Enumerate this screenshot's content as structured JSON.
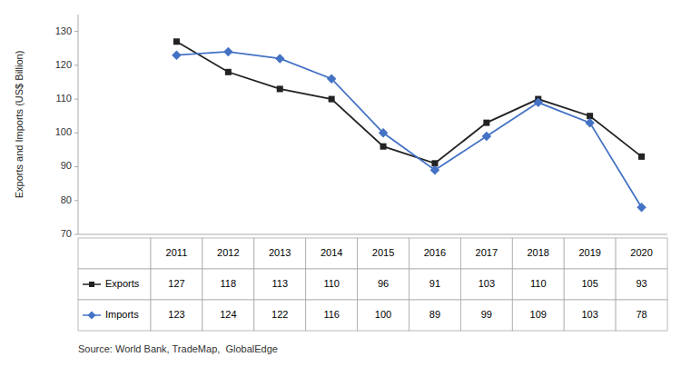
{
  "chart_data": {
    "type": "line",
    "categories": [
      "2011",
      "2012",
      "2013",
      "2014",
      "2015",
      "2016",
      "2017",
      "2018",
      "2019",
      "2020"
    ],
    "series": [
      {
        "name": "Exports",
        "color": "#222222",
        "marker": "square",
        "values": [
          127,
          118,
          113,
          110,
          96,
          91,
          103,
          110,
          105,
          93
        ]
      },
      {
        "name": "Imports",
        "color": "#4472C4",
        "marker": "diamond",
        "values": [
          123,
          124,
          122,
          116,
          100,
          89,
          99,
          109,
          103,
          78
        ]
      }
    ],
    "y_label": "Exports and Imports (US$ Billion)",
    "ylim": [
      70,
      135
    ],
    "yticks": [
      70,
      80,
      90,
      100,
      110,
      120,
      130
    ],
    "grid": false,
    "tick_labels": "y",
    "annotations": [
      "Source: World Bank, TradeMap,  GlobalEdge"
    ]
  }
}
